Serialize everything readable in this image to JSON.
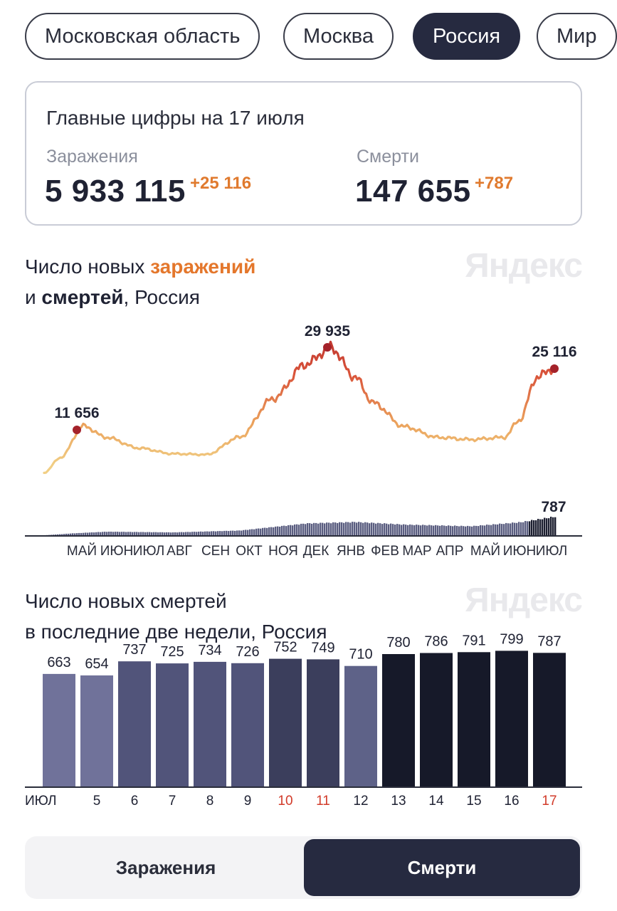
{
  "regions": [
    {
      "label": "Московская область",
      "active": false
    },
    {
      "label": "Москва",
      "active": false
    },
    {
      "label": "Россия",
      "active": true
    },
    {
      "label": "Мир",
      "active": false
    }
  ],
  "summary": {
    "title": "Главные цифры на 17 июля",
    "infections": {
      "label": "Заражения",
      "value": "5 933 115",
      "delta": "+25 116"
    },
    "deaths": {
      "label": "Смерти",
      "value": "147 655",
      "delta": "+787"
    }
  },
  "brand": "Яндекс",
  "chart1": {
    "title_pre": "Число новых ",
    "title_hl": "заражений",
    "title_mid": "и ",
    "title_bold": "смертей",
    "title_post": ", Россия",
    "peak_labels": [
      "11 656",
      "29 935",
      "25 116"
    ],
    "deaths_label": "787",
    "months": [
      "МАЙ",
      "ИЮН",
      "ИЮЛ",
      "АВГ",
      "СЕН",
      "ОКТ",
      "НОЯ",
      "ДЕК",
      "ЯНВ",
      "ФЕВ",
      "МАР",
      "АПР",
      "МАЙ",
      "ИЮН",
      "ИЮЛ"
    ]
  },
  "chart_data": [
    {
      "type": "line",
      "title": "Число новых заражений и смертей, Россия",
      "series": [
        {
          "name": "заражений",
          "x": [
            "2020-04-05",
            "2020-04-20",
            "2020-05-11",
            "2020-06-01",
            "2020-07-01",
            "2020-08-01",
            "2020-09-01",
            "2020-10-01",
            "2020-11-01",
            "2020-12-01",
            "2020-12-24",
            "2021-01-15",
            "2021-02-01",
            "2021-03-01",
            "2021-04-01",
            "2021-05-01",
            "2021-06-01",
            "2021-06-15",
            "2021-07-01",
            "2021-07-17"
          ],
          "values": [
            800,
            4300,
            11656,
            9000,
            6500,
            5200,
            5000,
            9000,
            18000,
            26000,
            29935,
            23000,
            17000,
            11500,
            9000,
            8500,
            9000,
            13000,
            23000,
            25116
          ]
        },
        {
          "name": "смертей",
          "x": [
            "2020-05-01",
            "2020-06-01",
            "2020-08-01",
            "2020-10-01",
            "2020-12-01",
            "2021-01-15",
            "2021-03-01",
            "2021-05-01",
            "2021-06-15",
            "2021-07-17"
          ],
          "values": [
            80,
            150,
            120,
            200,
            500,
            560,
            450,
            380,
            550,
            787
          ]
        }
      ],
      "annotations": [
        "11 656",
        "29 935",
        "25 116",
        "787"
      ]
    },
    {
      "type": "bar",
      "title": "Число новых смертей в последние две недели, Россия",
      "categories": [
        "ИЮЛ",
        "5",
        "6",
        "7",
        "8",
        "9",
        "10",
        "11",
        "12",
        "13",
        "14",
        "15",
        "16",
        "17"
      ],
      "values": [
        663,
        654,
        737,
        725,
        734,
        726,
        752,
        749,
        710,
        780,
        786,
        791,
        799,
        787
      ],
      "weekend": [
        false,
        false,
        false,
        false,
        false,
        false,
        true,
        true,
        false,
        false,
        false,
        false,
        false,
        true
      ],
      "ylim": [
        0,
        850
      ]
    }
  ],
  "chart2": {
    "title_line1": "Число новых смертей",
    "title_line2": "в последние две недели, Россия"
  },
  "tabs": {
    "infections": "Заражения",
    "deaths": "Смерти"
  },
  "colors": {
    "accent": "#e4772c",
    "dark": "#262a40",
    "weekend": "#d23b2a"
  }
}
